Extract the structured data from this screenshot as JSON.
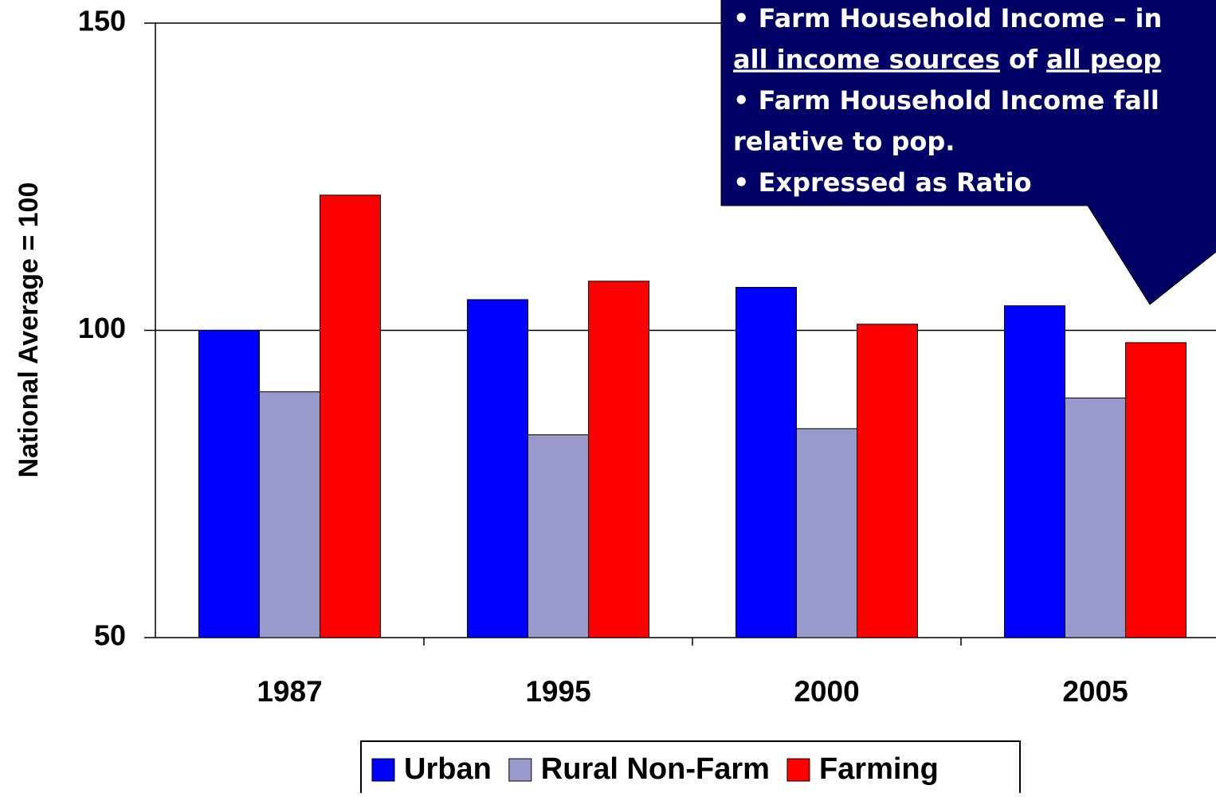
{
  "chart_data": {
    "type": "bar",
    "y_label": "National Average = 100",
    "categories": [
      "1987",
      "1995",
      "2000",
      "2005"
    ],
    "series": [
      {
        "name": "Urban",
        "color": "#0000ff",
        "values": [
          100,
          105,
          107,
          104
        ]
      },
      {
        "name": "Rural Non-Farm",
        "color": "#9999cc",
        "values": [
          90,
          83,
          84,
          89
        ]
      },
      {
        "name": "Farming",
        "color": "#ff0000",
        "values": [
          122,
          108,
          101,
          98
        ]
      }
    ],
    "ylim": [
      50,
      150
    ],
    "yticks": [
      50,
      100,
      150
    ],
    "grid": true,
    "legend": "bottom",
    "callout": {
      "color": "#000066",
      "lines": [
        [
          {
            "text": "• Farm Household Income – in",
            "underline": false
          }
        ],
        [
          {
            "text": "all income sources",
            "underline": true
          },
          {
            "text": " of ",
            "underline": false
          },
          {
            "text": "all peop",
            "underline": true
          }
        ],
        [
          {
            "text": "• Farm Household Income fall",
            "underline": false
          }
        ],
        [
          {
            "text": "relative to pop.",
            "underline": false
          }
        ],
        [
          {
            "text": "• Expressed as Ratio",
            "underline": false
          }
        ]
      ]
    }
  }
}
